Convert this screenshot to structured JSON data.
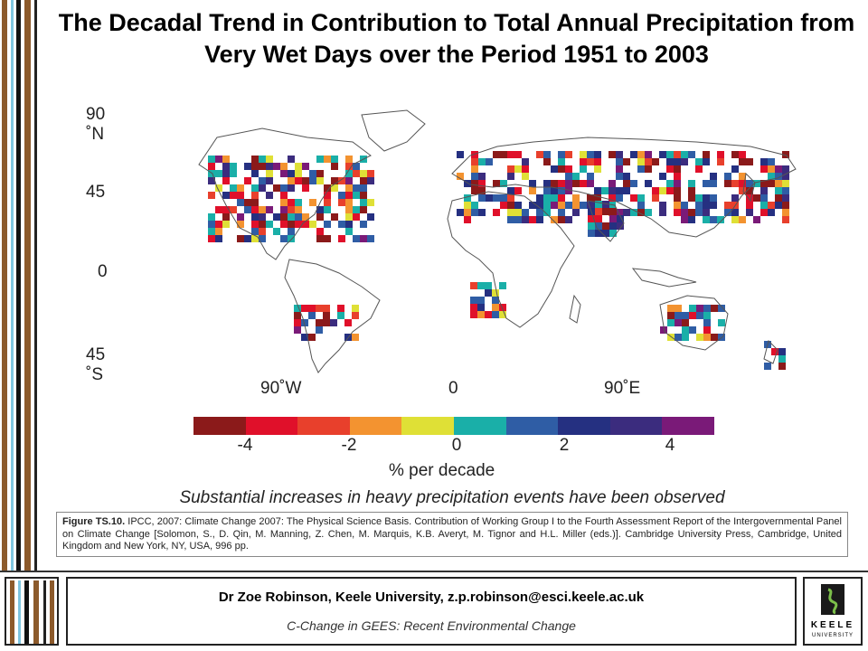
{
  "title": "The Decadal Trend in Contribution to Total Annual Precipitation from Very Wet Days over the Period 1951 to 2003",
  "map": {
    "lat_labels": [
      {
        "text": "90",
        "sub": "˚N"
      },
      {
        "text": "45",
        "sub": ""
      },
      {
        "text": "0",
        "sub": ""
      },
      {
        "text": "45",
        "sub": "˚S"
      }
    ],
    "lon_labels": [
      "90˚W",
      "0",
      "90˚E"
    ],
    "land_color": "#ffffff",
    "coast_color": "#555555"
  },
  "chart_data": {
    "type": "heatmap",
    "title": "The Decadal Trend in Contribution to Total Annual Precipitation from Very Wet Days over the Period 1951 to 2003",
    "colorbar": {
      "unit": "% per decade",
      "ticks": [
        "-4",
        "-2",
        "0",
        "2",
        "4"
      ],
      "range": [
        -5,
        5
      ],
      "colors": [
        "#8b1a1a",
        "#e0102a",
        "#e8402c",
        "#f39330",
        "#dfe036",
        "#1aafa8",
        "#2f5da5",
        "#253081",
        "#3b2c7e",
        "#7a1a78"
      ]
    }
  },
  "subtitle": "Substantial increases in heavy precipitation events have been observed",
  "citation": {
    "label": "Figure TS.10.",
    "text": " IPCC, 2007: Climate Change 2007: The Physical Science Basis. Contribution of Working Group I to the Fourth Assessment Report of the Intergovernmental Panel on Climate Change [Solomon, S., D. Qin, M. Manning, Z. Chen, M. Marquis, K.B. Averyt, M. Tignor and H.L. Miller (eds.)]. Cambridge University Press, Cambridge, United Kingdom and New York, NY, USA, 996 pp."
  },
  "footer": {
    "name": "Dr Zoe Robinson, Keele University, z.p.robinson@esci.keele.ac.uk",
    "course": "C-Change in GEES: Recent Environmental Change"
  },
  "logo": {
    "line1": "KEELE",
    "line2": "UNIVERSITY"
  },
  "decor": {
    "stripe_colors": [
      "#8c5a2b",
      "#ffffff",
      "#7fc6e0",
      "#ffffff",
      "#111111",
      "#ffffff",
      "#8c5a2b",
      "#ffffff",
      "#222222"
    ]
  }
}
